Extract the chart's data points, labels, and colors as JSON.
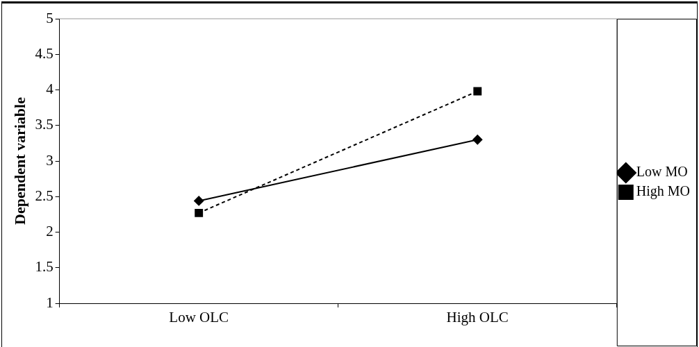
{
  "chart_data": {
    "type": "line",
    "ylabel": "Dependent variable",
    "categories": [
      "Low OLC",
      "High OLC"
    ],
    "series": [
      {
        "name": "Low MO",
        "color": "#000000",
        "values": [
          2.44,
          3.3
        ],
        "marker": "diamond",
        "line_style": "solid"
      },
      {
        "name": "High MO",
        "color": "#000000",
        "values": [
          2.27,
          3.98
        ],
        "marker": "square",
        "line_style": "dashed"
      }
    ],
    "ylim": [
      1,
      5
    ],
    "yticks": [
      1,
      1.5,
      2,
      2.5,
      3,
      3.5,
      4,
      4.5,
      5
    ],
    "grid": false,
    "legend": "right"
  }
}
